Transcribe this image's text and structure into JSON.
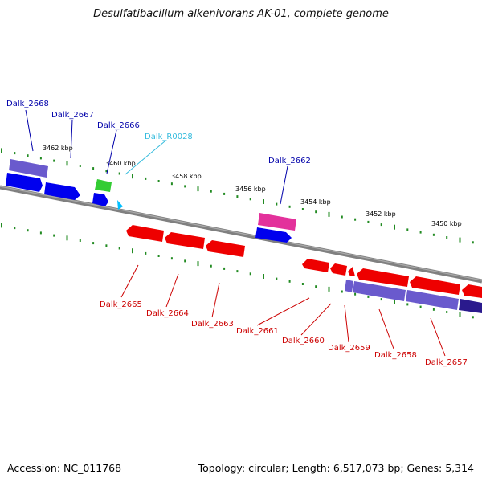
{
  "title": "Desulfatibacillum alkenivorans AK-01, complete genome",
  "footer": {
    "accession": "Accession: NC_011768",
    "summary": "Topology: circular; Length: 6,517,073 bp; Genes: 5,314"
  },
  "colors": {
    "backbone": "#808080",
    "tick": "#228b22",
    "forward_cds": "#0000ee",
    "forward_label": "#0000aa",
    "forward_gene_bar": "#6a5acd",
    "pink_cds": "#e3319b",
    "rna": "#00bfff",
    "rna_label": "#33bbdd",
    "green_gene": "#33cc33",
    "reverse_cds": "#ee0000",
    "reverse_label": "#cc0000",
    "reverse_gene_bar": "#6a5acd"
  },
  "scale_labels": [
    "3462 kbp",
    "3460 kbp",
    "3458 kbp",
    "3456 kbp",
    "3454 kbp",
    "3452 kbp",
    "3450 kbp"
  ],
  "genes_forward": [
    "Dalk_2668",
    "Dalk_2667",
    "Dalk_2666",
    "Dalk_R0028",
    "Dalk_2662"
  ],
  "genes_reverse": [
    "Dalk_2665",
    "Dalk_2664",
    "Dalk_2663",
    "Dalk_2661",
    "Dalk_2660",
    "Dalk_2659",
    "Dalk_2658",
    "Dalk_2657"
  ]
}
